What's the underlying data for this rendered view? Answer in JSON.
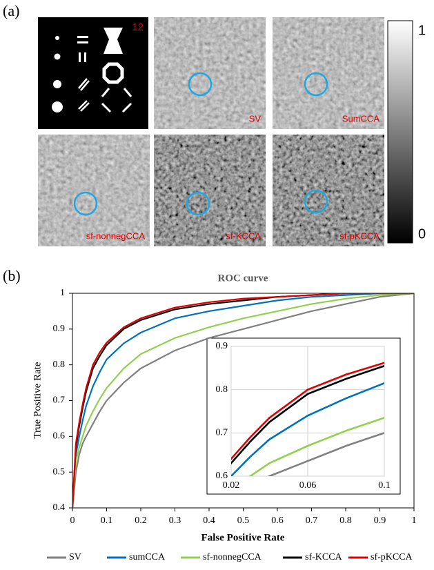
{
  "panel_a": {
    "label": "(a)",
    "phantom_label": "12",
    "images": [
      {
        "label": "SV"
      },
      {
        "label": "SumCCA"
      },
      {
        "label": "sf-nonnegCCA"
      },
      {
        "label": "sf-KCCA"
      },
      {
        "label": "sf-pKCCA"
      }
    ],
    "colorbar": {
      "ylim": [
        0,
        1
      ],
      "yticks": [
        0,
        1
      ]
    }
  },
  "panel_b": {
    "label": "(b)"
  },
  "chart_data": {
    "type": "line",
    "title": "ROC curve",
    "x_label": "False Positive Rate",
    "y_label": "True Positive Rate",
    "x": [
      0,
      0.01,
      0.02,
      0.03,
      0.04,
      0.06,
      0.08,
      0.1,
      0.15,
      0.2,
      0.3,
      0.4,
      0.5,
      0.6,
      0.7,
      0.8,
      0.9,
      1
    ],
    "series": [
      {
        "name": "SV",
        "color": "#808080",
        "values": [
          0.4,
          0.5,
          0.55,
          0.58,
          0.6,
          0.635,
          0.67,
          0.7,
          0.75,
          0.79,
          0.84,
          0.875,
          0.9,
          0.925,
          0.95,
          0.97,
          0.99,
          1
        ]
      },
      {
        "name": "sumCCA",
        "color": "#0070c0",
        "values": [
          0.4,
          0.55,
          0.6,
          0.645,
          0.685,
          0.74,
          0.78,
          0.815,
          0.86,
          0.89,
          0.93,
          0.95,
          0.965,
          0.98,
          0.99,
          0.995,
          1,
          1
        ]
      },
      {
        "name": "sf-nonnegCCA",
        "color": "#92d050",
        "values": [
          0.4,
          0.53,
          0.57,
          0.6,
          0.63,
          0.67,
          0.705,
          0.735,
          0.79,
          0.83,
          0.875,
          0.905,
          0.93,
          0.95,
          0.97,
          0.985,
          0.995,
          1
        ]
      },
      {
        "name": "sf-KCCA",
        "color": "#000000",
        "values": [
          0.4,
          0.57,
          0.63,
          0.68,
          0.725,
          0.79,
          0.825,
          0.855,
          0.9,
          0.925,
          0.955,
          0.97,
          0.98,
          0.99,
          0.995,
          1,
          1,
          1
        ]
      },
      {
        "name": "sf-pKCCA",
        "color": "#e00000",
        "values": [
          0.4,
          0.58,
          0.64,
          0.69,
          0.735,
          0.8,
          0.835,
          0.862,
          0.905,
          0.93,
          0.96,
          0.975,
          0.985,
          0.99,
          0.995,
          1,
          1,
          1
        ]
      }
    ],
    "xlim": [
      0,
      1
    ],
    "xticks": [
      0,
      0.1,
      0.2,
      0.3,
      0.4,
      0.5,
      0.6,
      0.7,
      0.8,
      0.9,
      1
    ],
    "ylim": [
      0.4,
      1
    ],
    "yticks": [
      0.4,
      0.5,
      0.6,
      0.7,
      0.8,
      0.9,
      1
    ],
    "legend": "bottom",
    "inset": {
      "xlim": [
        0.02,
        0.1
      ],
      "xticks": [
        0.02,
        0.06,
        0.1
      ],
      "ylim": [
        0.6,
        0.9
      ],
      "yticks": [
        0.6,
        0.7,
        0.8,
        0.9
      ],
      "grid": true
    }
  }
}
